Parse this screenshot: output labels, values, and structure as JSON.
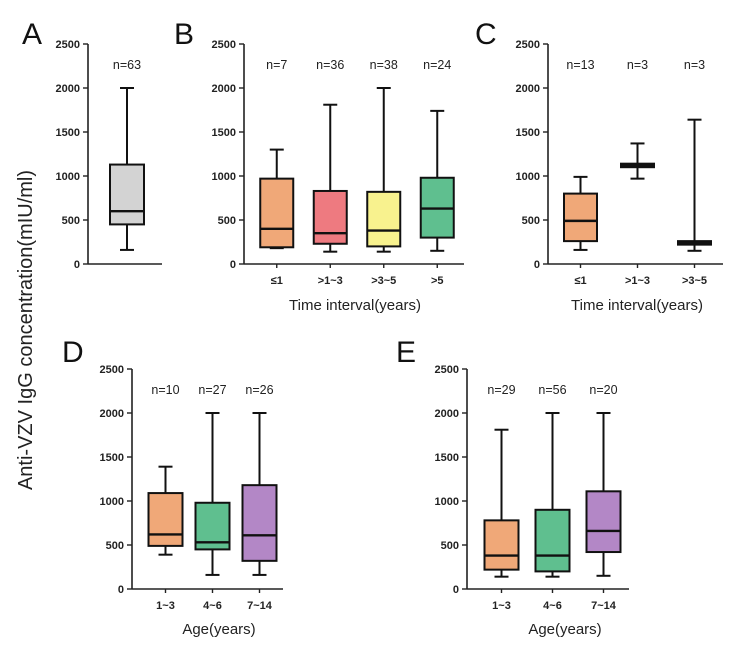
{
  "figure": {
    "ylabel": "Anti-VZV IgG concentration(mIU/ml)"
  },
  "chart_data": [
    {
      "panel": "A",
      "type": "box",
      "xlabel": "",
      "ylim": [
        0,
        2500
      ],
      "yticks": [
        0,
        500,
        1000,
        1500,
        2000,
        2500
      ],
      "categories": [
        ""
      ],
      "n_labels": [
        "n=63"
      ],
      "colors": [
        "#d3d3d3"
      ],
      "boxes": [
        {
          "min": 160,
          "q1": 450,
          "median": 600,
          "q3": 1130,
          "max": 2000
        }
      ]
    },
    {
      "panel": "B",
      "type": "box",
      "xlabel": "Time interval(years)",
      "ylim": [
        0,
        2500
      ],
      "yticks": [
        0,
        500,
        1000,
        1500,
        2000,
        2500
      ],
      "categories": [
        "≤1",
        ">1~3",
        ">3~5",
        ">5"
      ],
      "n_labels": [
        "n=7",
        "n=36",
        "n=38",
        "n=24"
      ],
      "colors": [
        "#f0a878",
        "#ee7a80",
        "#f8f28e",
        "#5fbf8f"
      ],
      "boxes": [
        {
          "min": 180,
          "q1": 190,
          "median": 400,
          "q3": 970,
          "max": 1300
        },
        {
          "min": 140,
          "q1": 230,
          "median": 350,
          "q3": 830,
          "max": 1810
        },
        {
          "min": 140,
          "q1": 200,
          "median": 380,
          "q3": 820,
          "max": 2000
        },
        {
          "min": 150,
          "q1": 300,
          "median": 630,
          "q3": 980,
          "max": 1740
        }
      ]
    },
    {
      "panel": "C",
      "type": "box",
      "xlabel": "Time interval(years)",
      "ylim": [
        0,
        2500
      ],
      "yticks": [
        0,
        500,
        1000,
        1500,
        2000,
        2500
      ],
      "categories": [
        "≤1",
        ">1~3",
        ">3~5"
      ],
      "n_labels": [
        "n=13",
        "n=3",
        "n=3"
      ],
      "colors": [
        "#f0a878",
        "#ffffff",
        "#ffffff"
      ],
      "boxes": [
        {
          "min": 160,
          "q1": 260,
          "median": 490,
          "q3": 800,
          "max": 990
        },
        {
          "min": 970,
          "q1": 1100,
          "median": 1120,
          "q3": 1140,
          "max": 1370
        },
        {
          "min": 150,
          "q1": 220,
          "median": 240,
          "q3": 260,
          "max": 1640
        }
      ]
    },
    {
      "panel": "D",
      "type": "box",
      "xlabel": "Age(years)",
      "ylim": [
        0,
        2500
      ],
      "yticks": [
        0,
        500,
        1000,
        1500,
        2000,
        2500
      ],
      "categories": [
        "1~3",
        "4~6",
        "7~14"
      ],
      "n_labels": [
        "n=10",
        "n=27",
        "n=26"
      ],
      "colors": [
        "#f0a878",
        "#5fbf8f",
        "#b387c6"
      ],
      "boxes": [
        {
          "min": 390,
          "q1": 490,
          "median": 620,
          "q3": 1090,
          "max": 1390
        },
        {
          "min": 160,
          "q1": 450,
          "median": 530,
          "q3": 980,
          "max": 2000
        },
        {
          "min": 160,
          "q1": 320,
          "median": 610,
          "q3": 1180,
          "max": 2000
        }
      ]
    },
    {
      "panel": "E",
      "type": "box",
      "xlabel": "Age(years)",
      "ylim": [
        0,
        2500
      ],
      "yticks": [
        0,
        500,
        1000,
        1500,
        2000,
        2500
      ],
      "categories": [
        "1~3",
        "4~6",
        "7~14"
      ],
      "n_labels": [
        "n=29",
        "n=56",
        "n=20"
      ],
      "colors": [
        "#f0a878",
        "#5fbf8f",
        "#b387c6"
      ],
      "boxes": [
        {
          "min": 140,
          "q1": 220,
          "median": 380,
          "q3": 780,
          "max": 1810
        },
        {
          "min": 140,
          "q1": 200,
          "median": 380,
          "q3": 900,
          "max": 2000
        },
        {
          "min": 150,
          "q1": 420,
          "median": 660,
          "q3": 1110,
          "max": 2000
        }
      ]
    }
  ]
}
